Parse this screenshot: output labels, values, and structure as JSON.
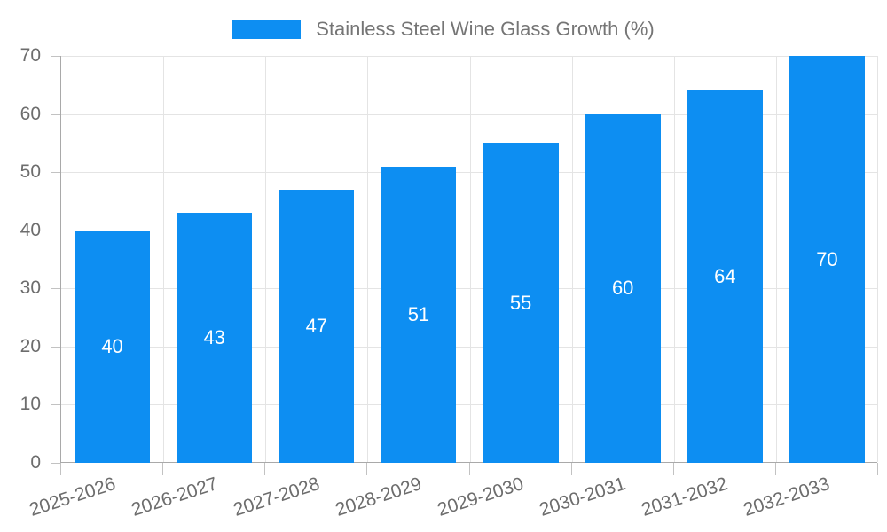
{
  "legend": {
    "label": "Stainless Steel Wine Glass Growth (%)"
  },
  "chart_data": {
    "type": "bar",
    "title": "",
    "xlabel": "",
    "ylabel": "",
    "categories": [
      "2025-2026",
      "2026-2027",
      "2027-2028",
      "2028-2029",
      "2029-2030",
      "2030-2031",
      "2031-2032",
      "2032-2033"
    ],
    "values": [
      40,
      43,
      47,
      51,
      55,
      60,
      64,
      70
    ],
    "series": [
      {
        "name": "Stainless Steel Wine Glass Growth (%)",
        "values": [
          40,
          43,
          47,
          51,
          55,
          60,
          64,
          70
        ]
      }
    ],
    "ylim": [
      0,
      70
    ],
    "yticks": [
      0,
      10,
      20,
      30,
      40,
      50,
      60,
      70
    ],
    "grid": "on",
    "legend_position": "top-center",
    "bar_labels": "inside-center-white",
    "colors": {
      "bar": "#0d8ef2",
      "bar_label_text": "#ffffff",
      "axis_text": "#6d6d6d",
      "legend_text": "#757575",
      "gridline": "#e4e4e4",
      "axis_line": "#a9a9a9"
    }
  }
}
